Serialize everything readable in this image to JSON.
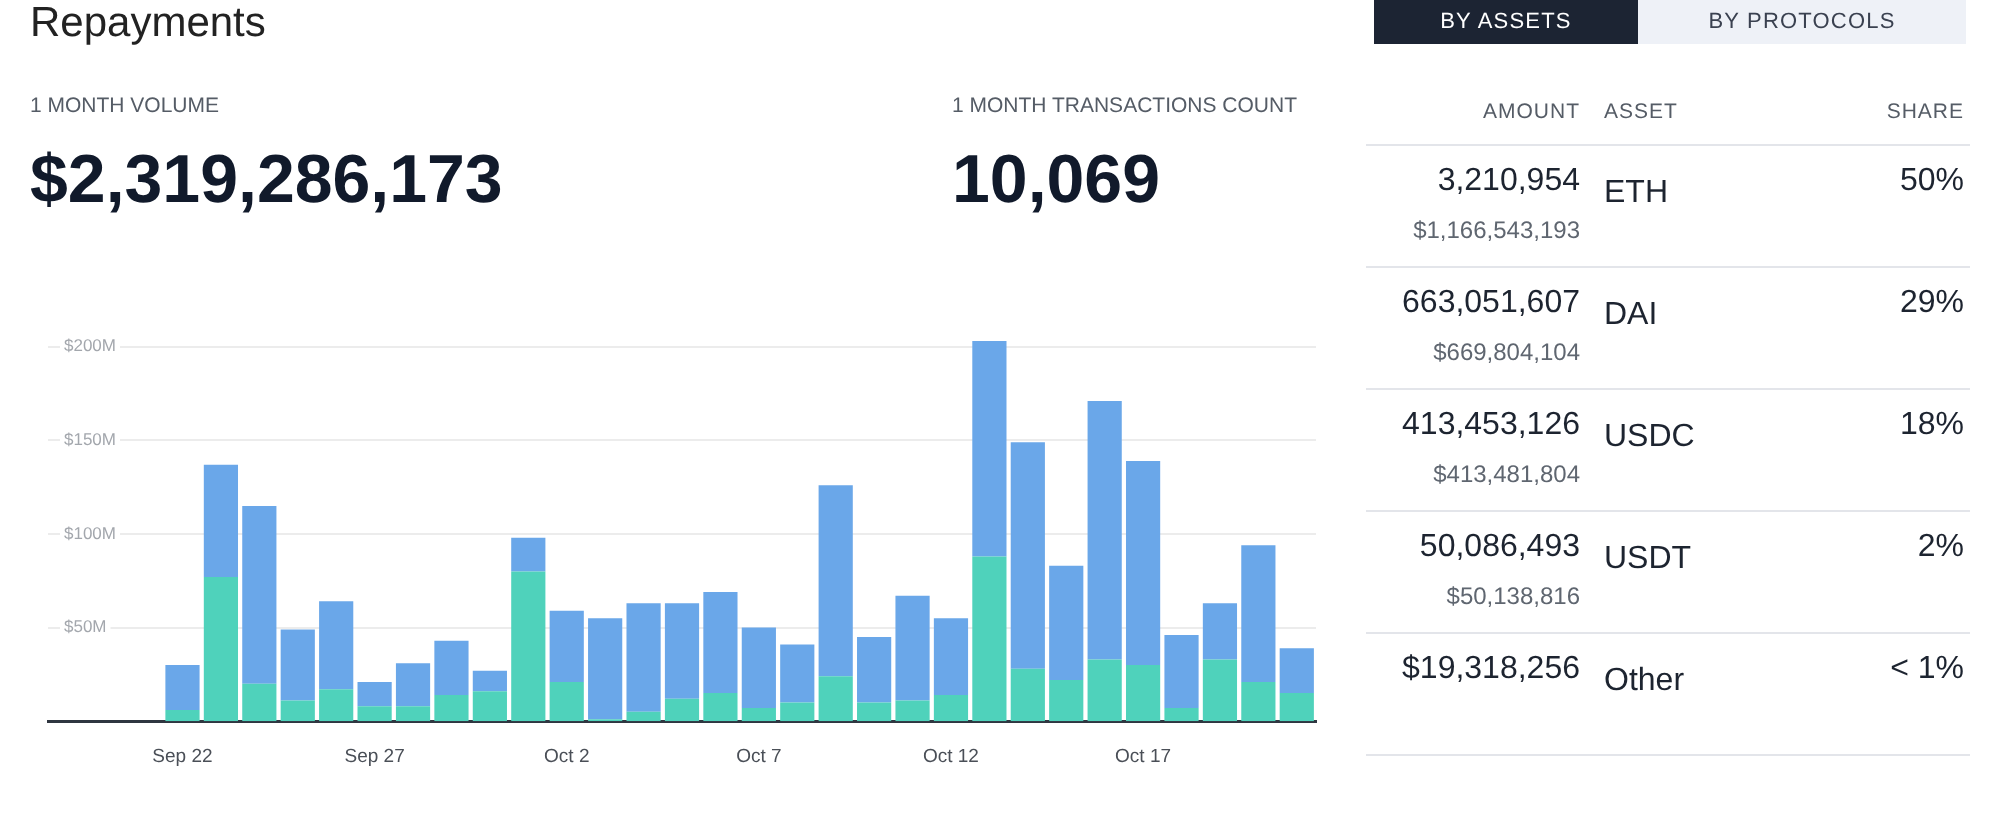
{
  "chart_data": [
    {
      "type": "bar",
      "title": "Repayments",
      "annotations": [
        "1 MONTH VOLUME",
        "$2,319,286,173",
        "1 MONTH TRANSACTIONS COUNT",
        "10,069"
      ],
      "categories": [
        null,
        null,
        null,
        "Sep 22",
        null,
        null,
        null,
        null,
        "Sep 27",
        null,
        null,
        null,
        null,
        "Oct 2",
        null,
        null,
        null,
        null,
        "Oct 7",
        null,
        null,
        null,
        null,
        "Oct 12",
        null,
        null,
        null,
        null,
        "Oct 17",
        null,
        null,
        null,
        null
      ],
      "stacked": true,
      "series": [
        {
          "color": "#4fd2bb",
          "values": [
            null,
            null,
            null,
            6,
            77,
            20,
            11,
            17,
            8,
            8,
            14,
            16,
            80,
            21,
            1,
            5,
            12,
            15,
            7,
            10,
            24,
            10,
            11,
            14,
            88,
            28,
            22,
            33,
            30,
            7,
            33,
            21,
            15
          ]
        },
        {
          "color": "#6aa7e9",
          "values": [
            null,
            null,
            null,
            24,
            60,
            95,
            38,
            47,
            13,
            23,
            29,
            11,
            18,
            38,
            54,
            58,
            51,
            54,
            43,
            31,
            102,
            35,
            56,
            41,
            115,
            121,
            61,
            138,
            109,
            39,
            30,
            73,
            24
          ]
        }
      ],
      "ylim": [
        0,
        210
      ],
      "yticks": [
        {
          "value": 50,
          "label": "$50M"
        },
        {
          "value": 100,
          "label": "$100M"
        },
        {
          "value": 150,
          "label": "$150M"
        },
        {
          "value": 200,
          "label": "$200M"
        }
      ],
      "grid": "y"
    },
    {
      "type": "other",
      "annotations": [
        "BY ASSETS",
        "BY PROTOCOLS"
      ],
      "categories": [
        "AMOUNT",
        "ASSET",
        "SHARE"
      ],
      "cell_labels": [
        [
          "3,210,954",
          "$1,166,543,193",
          "ETH",
          "50%"
        ],
        [
          "663,051,607",
          "$669,804,104",
          "DAI",
          "29%"
        ],
        [
          "413,453,126",
          "$413,481,804",
          "USDC",
          "18%"
        ],
        [
          "50,086,493",
          "$50,138,816",
          "USDT",
          "2%"
        ],
        [
          "$19,318,256",
          null,
          "Other",
          "< 1%"
        ]
      ]
    }
  ]
}
